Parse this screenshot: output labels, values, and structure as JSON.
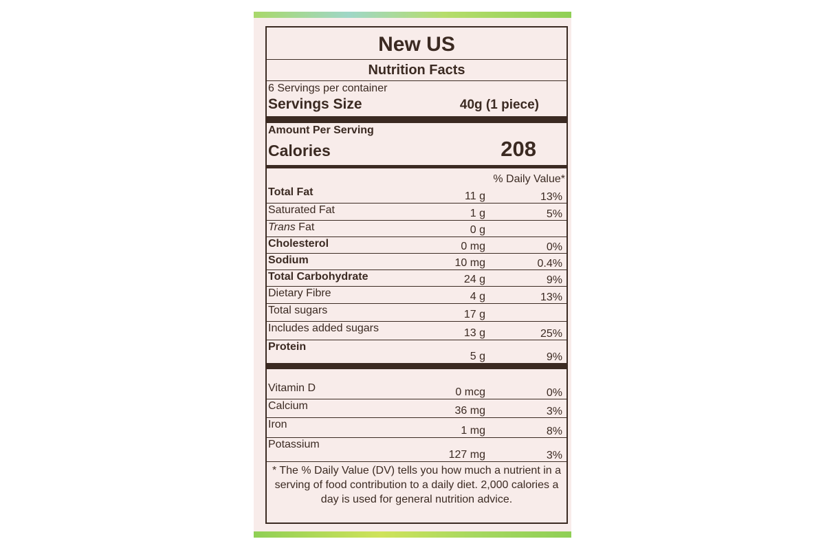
{
  "label": {
    "title": "New US",
    "subtitle": "Nutrition Facts",
    "servings_per_container": "6 Servings per container",
    "serving_size_label": "Servings Size",
    "serving_size_value": "40g (1 piece)",
    "amount_per_serving": "Amount Per Serving",
    "calories_label": "Calories",
    "calories_value": "208",
    "daily_value_header": "% Daily Value*",
    "nutrients": [
      {
        "name": "Total Fat",
        "amount": "11 g",
        "dv": "13%"
      },
      {
        "name": "Saturated Fat",
        "amount": "1 g",
        "dv": "5%"
      },
      {
        "name_italic": "Trans",
        "name": " Fat",
        "amount": "0 g",
        "dv": ""
      },
      {
        "name": "Cholesterol",
        "amount": "0 mg",
        "dv": "0%"
      },
      {
        "name": "Sodium",
        "amount": "10 mg",
        "dv": "0.4%"
      },
      {
        "name": "Total Carbohydrate",
        "amount": "24 g",
        "dv": "9%"
      },
      {
        "name": "Dietary Fibre",
        "amount": "4 g",
        "dv": "13%"
      },
      {
        "name": "Total sugars",
        "amount": "17 g",
        "dv": ""
      },
      {
        "name": "Includes added sugars",
        "amount": "13 g",
        "dv": "25%"
      },
      {
        "name": "Protein",
        "amount": "5 g",
        "dv": "9%"
      }
    ],
    "vitamins": [
      {
        "name": "Vitamin D",
        "amount": "0 mcg",
        "dv": "0%"
      },
      {
        "name": "Calcium",
        "amount": "36 mg",
        "dv": "3%"
      },
      {
        "name": "Iron",
        "amount": "1 mg",
        "dv": "8%"
      },
      {
        "name": "Potassium",
        "amount": "127 mg",
        "dv": "3%"
      }
    ],
    "footnote": "* The % Daily Value (DV) tells you how much a nutrient in a serving of food contribution to a daily diet. 2,000 calories a day is used for general nutrition advice."
  },
  "colors": {
    "ink": "#3b2a22",
    "paper": "#f8ecea",
    "border_strip": "#a9d86a"
  }
}
